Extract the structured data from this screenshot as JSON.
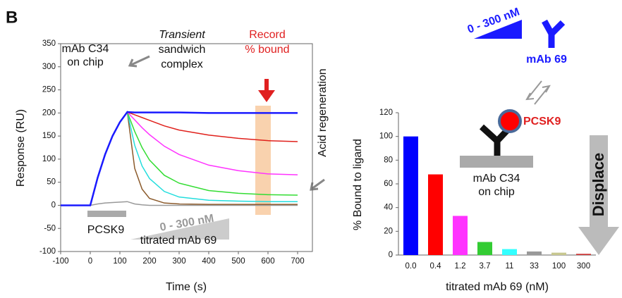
{
  "chart_data": [
    {
      "type": "line",
      "panel_label": "B",
      "xlabel": "Time (s)",
      "ylabel": "Response (RU)",
      "xlim": [
        -100,
        750
      ],
      "ylim": [
        -100,
        350
      ],
      "xticks": [
        -100,
        0,
        100,
        200,
        300,
        400,
        500,
        600,
        700
      ],
      "yticks": [
        -100,
        -50,
        0,
        50,
        100,
        150,
        200,
        250,
        300,
        350
      ],
      "x": [
        -100,
        0,
        25,
        50,
        75,
        100,
        125,
        150,
        175,
        200,
        250,
        300,
        400,
        500,
        600,
        700
      ],
      "series": [
        {
          "color": "#999999",
          "values": [
            0,
            0,
            3,
            5,
            6,
            7,
            8,
            3,
            1,
            0,
            0,
            0,
            0,
            0,
            0,
            0
          ]
        },
        {
          "color": "#8b5a2b",
          "values": [
            0,
            0,
            60,
            110,
            150,
            180,
            202,
            80,
            35,
            15,
            5,
            3,
            2,
            2,
            2,
            2
          ]
        },
        {
          "color": "#22dddd",
          "values": [
            0,
            0,
            60,
            110,
            150,
            180,
            202,
            130,
            85,
            58,
            30,
            18,
            11,
            9,
            8,
            8
          ]
        },
        {
          "color": "#33dd33",
          "values": [
            0,
            0,
            60,
            110,
            150,
            180,
            202,
            160,
            125,
            98,
            65,
            48,
            32,
            26,
            23,
            22
          ]
        },
        {
          "color": "#ff33ff",
          "values": [
            0,
            0,
            60,
            110,
            150,
            180,
            202,
            185,
            168,
            153,
            128,
            110,
            87,
            75,
            68,
            66
          ]
        },
        {
          "color": "#e0201b",
          "values": [
            0,
            0,
            60,
            110,
            150,
            180,
            202,
            196,
            190,
            184,
            172,
            163,
            152,
            145,
            140,
            138
          ]
        },
        {
          "color": "#1a1aff",
          "values": [
            0,
            0,
            60,
            110,
            150,
            180,
            202,
            201,
            201,
            201,
            201,
            201,
            200,
            200,
            200,
            200
          ]
        }
      ],
      "annotations": [
        "mAb C34",
        "on chip",
        "Transient",
        "sandwich",
        "complex",
        "Record",
        "% bound",
        "Acid regeneration",
        "PCSK9",
        "0 - 300 nM",
        "titrated mAb 69"
      ]
    },
    {
      "type": "bar",
      "xlabel": "titrated mAb 69 (nM)",
      "ylabel": "% Bound to ligand",
      "ylim": [
        0,
        120
      ],
      "yticks": [
        0,
        20,
        40,
        60,
        80,
        100,
        120
      ],
      "categories": [
        "0.0",
        "0.4",
        "1.2",
        "3.7",
        "11",
        "33",
        "100",
        "300"
      ],
      "values": [
        100,
        68,
        33,
        11,
        5,
        3,
        2,
        1
      ],
      "colors": [
        "#0000ff",
        "#ff0000",
        "#ff33ff",
        "#33cc33",
        "#33ffff",
        "#999999",
        "#c8c890",
        "#cc3333"
      ],
      "annotations": [
        "0 - 300 nM",
        "mAb 69",
        "PCSK9",
        "mAb C34",
        "on chip",
        "Displace"
      ]
    }
  ]
}
